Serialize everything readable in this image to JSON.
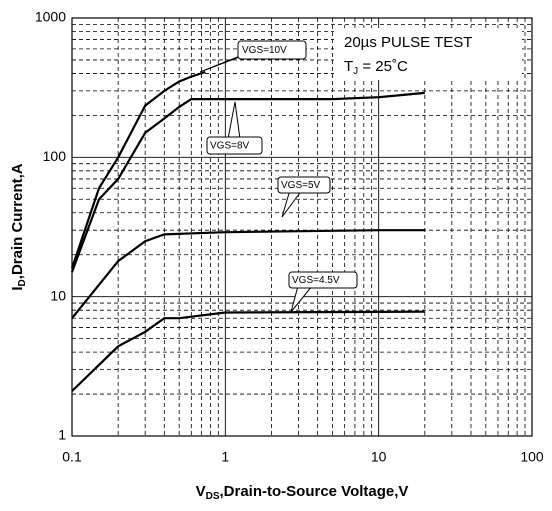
{
  "chart_data": {
    "type": "line",
    "x_label": [
      "V",
      "DS",
      ",Drain-to-Source Voltage,V"
    ],
    "y_label": [
      "I",
      "D",
      ",Drain Current,A"
    ],
    "annotations": [
      "20µs PULSE TEST",
      [
        "T",
        "J",
        " = 25˚C"
      ]
    ],
    "xscale": "log",
    "yscale": "log",
    "xlim": [
      0.1,
      100
    ],
    "ylim": [
      1,
      1000
    ],
    "xticks": [
      0.1,
      1,
      10,
      100
    ],
    "yticks": [
      1,
      10,
      100,
      1000
    ],
    "grid": true,
    "minor_grid": true,
    "series": [
      {
        "name": "VGS=10V",
        "color": "#000000",
        "x": [
          0.1,
          0.15,
          0.2,
          0.3,
          0.4,
          0.5,
          0.6,
          0.74
        ],
        "values": [
          16,
          60,
          100,
          235,
          300,
          350,
          380,
          410
        ]
      },
      {
        "name": "VGS=8V",
        "color": "#000000",
        "x": [
          0.1,
          0.15,
          0.2,
          0.3,
          0.4,
          0.5,
          0.6,
          1,
          5,
          10,
          20
        ],
        "values": [
          15,
          50,
          70,
          150,
          190,
          230,
          262,
          262,
          262,
          270,
          290
        ]
      },
      {
        "name": "VGS=5V",
        "color": "#000000",
        "x": [
          0.1,
          0.2,
          0.3,
          0.4,
          1,
          10,
          20
        ],
        "values": [
          7,
          18,
          25,
          28,
          29,
          30,
          30
        ]
      },
      {
        "name": "VGS=4.5V",
        "color": "#000000",
        "x": [
          0.1,
          0.2,
          0.3,
          0.4,
          0.5,
          1,
          20
        ],
        "values": [
          2.1,
          4.4,
          5.6,
          7,
          7,
          7.7,
          7.8
        ]
      }
    ]
  }
}
